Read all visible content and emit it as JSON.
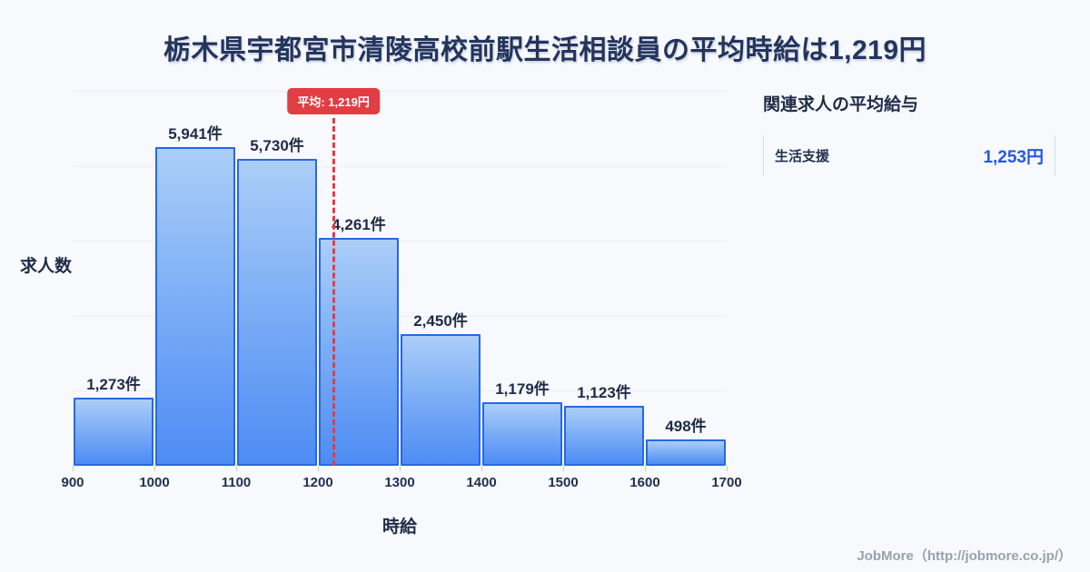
{
  "page": {
    "title": "栃木県宇都宮市清陵高校前駅生活相談員の平均時給は1,219円",
    "footer_credit": "JobMore（http://jobmore.co.jp/）"
  },
  "chart_data": {
    "type": "bar",
    "title": "栃木県宇都宮市清陵高校前駅生活相談員の平均時給は1,219円",
    "xlabel": "時給",
    "ylabel": "求人数",
    "categories": [
      "900-1000",
      "1000-1100",
      "1100-1200",
      "1200-1300",
      "1300-1400",
      "1400-1500",
      "1500-1600",
      "1600-1700"
    ],
    "x_ticks": [
      "900",
      "1000",
      "1100",
      "1200",
      "1300",
      "1400",
      "1500",
      "1600",
      "1700"
    ],
    "x_range": [
      900,
      1700
    ],
    "values": [
      1273,
      5941,
      5730,
      4261,
      2450,
      1179,
      1123,
      498
    ],
    "value_labels": [
      "1,273件",
      "5,941件",
      "5,730件",
      "4,261件",
      "2,450件",
      "1,179件",
      "1,123件",
      "498件"
    ],
    "ylim": [
      0,
      7000
    ],
    "grid": true,
    "legend": null,
    "average_marker": {
      "value": 1219,
      "label": "平均: 1,219円"
    }
  },
  "side_panel": {
    "heading": "関連求人の平均給与",
    "rows": [
      {
        "label": "生活支援",
        "value": "1,253円"
      }
    ]
  },
  "colors": {
    "background": "#f7f9fc",
    "title_text": "#24345c",
    "bar_border": "#2767e8",
    "bar_fill_top": "#accef8",
    "bar_fill_bottom": "#4e8cf4",
    "average_red": "#e23d42",
    "side_value_blue": "#2457e6",
    "footer_gray": "#9ba1ab",
    "gridline": "#e9edf4"
  }
}
